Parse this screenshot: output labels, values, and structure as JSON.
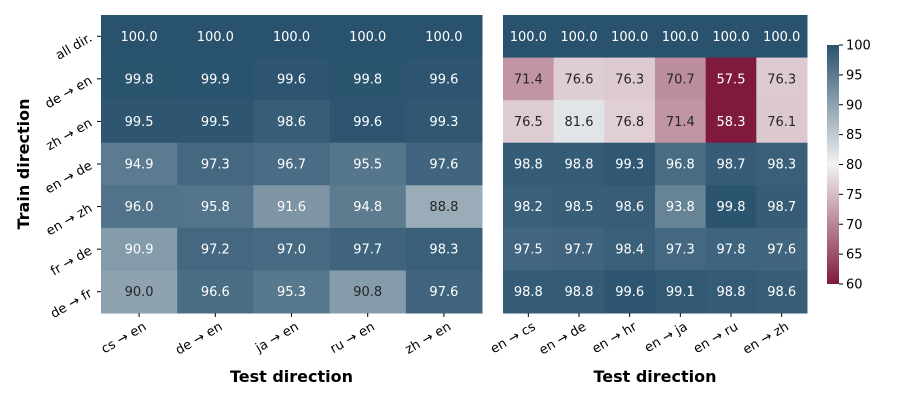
{
  "chart_data": {
    "type": "heatmap",
    "colormap": {
      "low": "#7f1a3e",
      "mid": "#f2f2f2",
      "high": "#29526e"
    },
    "colorbar": {
      "min": 60,
      "max": 100,
      "mid": 80,
      "ticks": [
        "60",
        "65",
        "70",
        "75",
        "80",
        "85",
        "90",
        "95",
        "100"
      ]
    },
    "ylabel": "Train direction",
    "rows": [
      "all dir.",
      "de → en",
      "zh → en",
      "en → de",
      "en → zh",
      "fr → de",
      "de → fr"
    ],
    "panels": [
      {
        "xlabel": "Test direction",
        "columns": [
          "cs → en",
          "de → en",
          "ja → en",
          "ru → en",
          "zh → en"
        ],
        "values": [
          [
            100.0,
            100.0,
            100.0,
            100.0,
            100.0
          ],
          [
            99.8,
            99.9,
            99.6,
            99.8,
            99.6
          ],
          [
            99.5,
            99.5,
            98.6,
            99.6,
            99.3
          ],
          [
            94.9,
            97.3,
            96.7,
            95.5,
            97.6
          ],
          [
            96.0,
            95.8,
            91.6,
            94.8,
            88.8
          ],
          [
            90.9,
            97.2,
            97.0,
            97.7,
            98.3
          ],
          [
            90.0,
            96.6,
            95.3,
            90.8,
            97.6
          ]
        ]
      },
      {
        "xlabel": "Test direction",
        "columns": [
          "en → cs",
          "en → de",
          "en → hr",
          "en → ja",
          "en → ru",
          "en → zh"
        ],
        "values": [
          [
            100.0,
            100.0,
            100.0,
            100.0,
            100.0,
            100.0
          ],
          [
            71.4,
            76.6,
            76.3,
            70.7,
            57.5,
            76.3
          ],
          [
            76.5,
            81.6,
            76.8,
            71.4,
            58.3,
            76.1
          ],
          [
            98.8,
            98.8,
            99.3,
            96.8,
            98.7,
            98.3
          ],
          [
            98.2,
            98.5,
            98.6,
            93.8,
            99.8,
            98.7
          ],
          [
            97.5,
            97.7,
            98.4,
            97.3,
            97.8,
            97.6
          ],
          [
            98.8,
            98.8,
            99.6,
            99.1,
            98.8,
            98.6
          ]
        ]
      }
    ]
  }
}
